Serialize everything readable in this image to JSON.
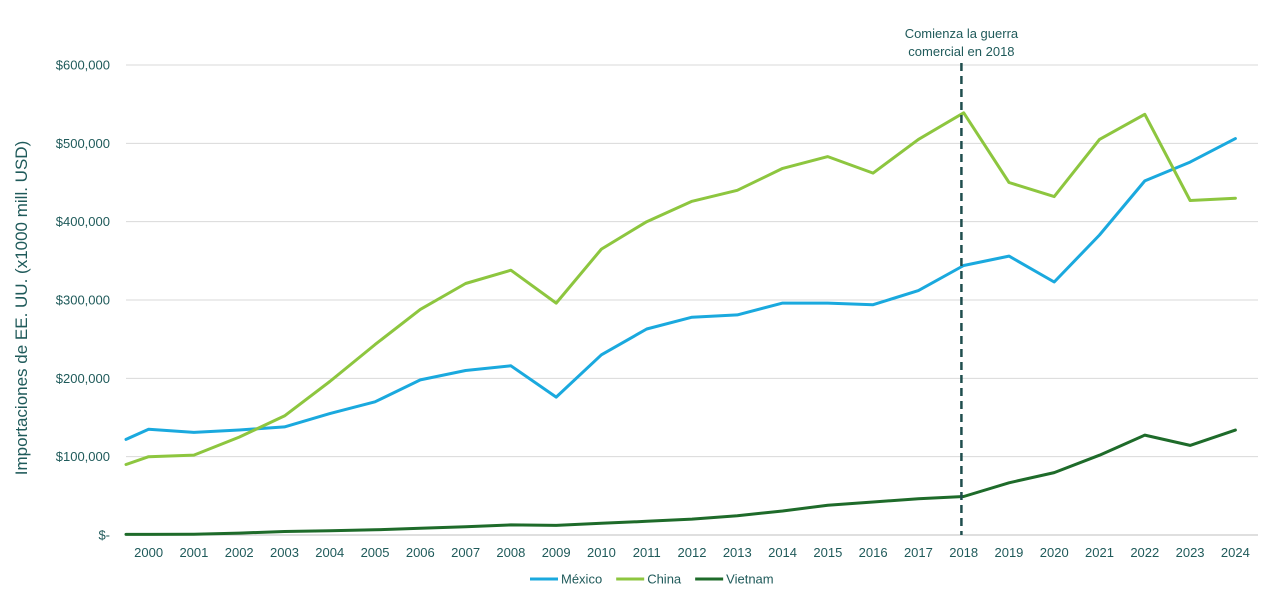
{
  "chart_data": {
    "type": "line",
    "ylabel": "Importaciones de EE. UU. (x1000 mill. USD)",
    "xlabel": "",
    "ylim": [
      0,
      600000
    ],
    "yticks": [
      0,
      100000,
      200000,
      300000,
      400000,
      500000,
      600000
    ],
    "ytick_labels": [
      "$-",
      "$100,000",
      "$200,000",
      "$300,000",
      "$400,000",
      "$500,000",
      "$600,000"
    ],
    "categories": [
      "2000",
      "2001",
      "2002",
      "2003",
      "2004",
      "2005",
      "2006",
      "2007",
      "2008",
      "2009",
      "2010",
      "2011",
      "2012",
      "2013",
      "2014",
      "2015",
      "2016",
      "2017",
      "2018",
      "2019",
      "2020",
      "2021",
      "2022",
      "2023",
      "2024"
    ],
    "series": [
      {
        "name": "México",
        "color": "#1aa9de",
        "values": [
          135000,
          131000,
          134000,
          138000,
          155000,
          170000,
          198000,
          210000,
          216000,
          176000,
          230000,
          263000,
          278000,
          281000,
          296000,
          296000,
          294000,
          312000,
          344000,
          356000,
          323000,
          383000,
          452000,
          476000,
          506000
        ],
        "start_value": 122000
      },
      {
        "name": "China",
        "color": "#8dc63f",
        "values": [
          100000,
          102000,
          125000,
          152000,
          196000,
          243000,
          288000,
          321000,
          338000,
          296000,
          365000,
          400000,
          426000,
          440000,
          468000,
          483000,
          462000,
          505000,
          539000,
          450000,
          432000,
          505000,
          537000,
          427000,
          430000
        ],
        "start_value": 90000
      },
      {
        "name": "Vietnam",
        "color": "#1e6b2a",
        "values": [
          800,
          1000,
          2400,
          4500,
          5300,
          6600,
          8600,
          10600,
          12900,
          12300,
          14900,
          17500,
          20300,
          24700,
          30600,
          38000,
          42100,
          46400,
          49200,
          66700,
          79600,
          101900,
          127500,
          114400,
          133900
        ],
        "start_value": 800
      }
    ],
    "legend_position": "bottom",
    "grid": true,
    "annotation": {
      "line1": "Comienza la guerra",
      "line2": "comercial en 2018",
      "at_category": "2018",
      "color": "#1f4e4e"
    }
  }
}
